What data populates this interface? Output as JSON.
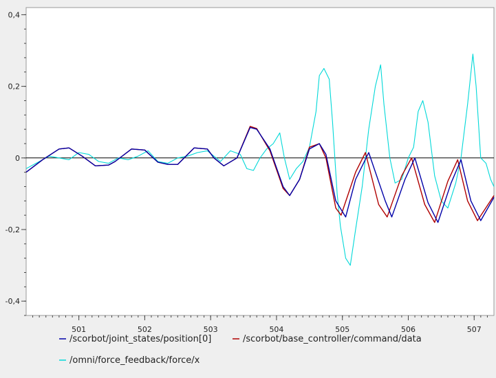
{
  "chart_data": {
    "type": "line",
    "title": "",
    "xlabel": "",
    "ylabel": "",
    "xlim": [
      500.2,
      507.3
    ],
    "ylim": [
      -0.44,
      0.42
    ],
    "x_ticks": [
      501,
      502,
      503,
      504,
      505,
      506,
      507
    ],
    "x_tick_labels": [
      "501",
      "502",
      "503",
      "504",
      "505",
      "506",
      "507"
    ],
    "y_ticks": [
      0.4,
      0.2,
      0,
      -0.2,
      -0.4
    ],
    "y_tick_labels": [
      "0,4",
      "0,2",
      "0",
      "-0,2",
      "-0,4"
    ],
    "zero_line": true,
    "grid": false,
    "legend_position": "bottom",
    "series": [
      {
        "name": "/scorbot/joint_states/position[0]",
        "color": "#0000a8",
        "x": [
          500.2,
          500.45,
          500.7,
          500.85,
          501.05,
          501.25,
          501.45,
          501.55,
          501.8,
          502.0,
          502.2,
          502.35,
          502.5,
          502.75,
          502.95,
          503.05,
          503.2,
          503.4,
          503.6,
          503.7,
          503.9,
          504.1,
          504.2,
          504.35,
          504.5,
          504.65,
          504.75,
          504.9,
          505.05,
          505.2,
          505.4,
          505.65,
          505.75,
          505.95,
          506.1,
          506.3,
          506.45,
          506.65,
          506.8,
          506.95,
          507.1,
          507.3
        ],
        "y": [
          -0.04,
          -0.005,
          0.025,
          0.028,
          0.005,
          -0.022,
          -0.02,
          -0.01,
          0.025,
          0.022,
          -0.012,
          -0.018,
          -0.018,
          0.028,
          0.025,
          0.0,
          -0.022,
          0.0,
          0.085,
          0.08,
          0.025,
          -0.08,
          -0.105,
          -0.06,
          0.025,
          0.04,
          0.01,
          -0.12,
          -0.165,
          -0.06,
          0.015,
          -0.12,
          -0.165,
          -0.06,
          0.0,
          -0.125,
          -0.18,
          -0.07,
          -0.005,
          -0.12,
          -0.175,
          -0.11
        ]
      },
      {
        "name": "/scorbot/base_controller/command/data",
        "color": "#b00000",
        "x": [
          500.2,
          500.45,
          500.7,
          500.85,
          501.05,
          501.25,
          501.45,
          501.55,
          501.8,
          502.0,
          502.2,
          502.35,
          502.5,
          502.75,
          502.95,
          503.05,
          503.2,
          503.4,
          503.6,
          503.7,
          503.9,
          504.1,
          504.2,
          504.35,
          504.5,
          504.65,
          504.75,
          504.9,
          504.98,
          505.2,
          505.35,
          505.55,
          505.68,
          505.9,
          506.05,
          506.25,
          506.4,
          506.6,
          506.75,
          506.9,
          507.05,
          507.3
        ],
        "y": [
          -0.04,
          -0.005,
          0.025,
          0.028,
          0.005,
          -0.022,
          -0.02,
          -0.01,
          0.025,
          0.022,
          -0.012,
          -0.018,
          -0.018,
          0.028,
          0.025,
          0.0,
          -0.022,
          0.0,
          0.088,
          0.082,
          0.02,
          -0.085,
          -0.105,
          -0.06,
          0.03,
          0.04,
          0.0,
          -0.14,
          -0.16,
          -0.04,
          0.015,
          -0.13,
          -0.165,
          -0.05,
          0.0,
          -0.13,
          -0.18,
          -0.065,
          -0.005,
          -0.12,
          -0.175,
          -0.105
        ]
      },
      {
        "name": "/omni/force_feedback/force/x",
        "color": "#00d8d8",
        "x": [
          500.2,
          500.4,
          500.55,
          500.7,
          500.85,
          501.0,
          501.15,
          501.3,
          501.45,
          501.6,
          501.75,
          501.9,
          502.05,
          502.2,
          502.35,
          502.5,
          502.65,
          502.8,
          502.95,
          503.05,
          503.15,
          503.3,
          503.45,
          503.55,
          503.65,
          503.75,
          503.85,
          503.95,
          504.05,
          504.12,
          504.2,
          504.3,
          504.4,
          504.5,
          504.6,
          504.65,
          504.72,
          504.8,
          504.85,
          504.92,
          504.97,
          505.05,
          505.12,
          505.2,
          505.3,
          505.4,
          505.5,
          505.58,
          505.63,
          505.72,
          505.8,
          505.9,
          506.0,
          506.08,
          506.15,
          506.22,
          506.3,
          506.4,
          506.5,
          506.6,
          506.72,
          506.8,
          506.9,
          506.98,
          507.03,
          507.1,
          507.18,
          507.25,
          507.3
        ],
        "y": [
          -0.03,
          -0.01,
          0.005,
          0.0,
          -0.005,
          0.015,
          0.01,
          -0.01,
          -0.015,
          0.0,
          -0.005,
          0.005,
          0.02,
          -0.01,
          -0.015,
          0.0,
          0.005,
          0.015,
          0.02,
          0.005,
          -0.01,
          0.02,
          0.01,
          -0.03,
          -0.035,
          0.0,
          0.025,
          0.04,
          0.07,
          0.0,
          -0.06,
          -0.03,
          -0.01,
          0.03,
          0.13,
          0.23,
          0.25,
          0.22,
          0.1,
          -0.1,
          -0.19,
          -0.28,
          -0.3,
          -0.2,
          -0.08,
          0.08,
          0.2,
          0.26,
          0.15,
          0.0,
          -0.07,
          -0.06,
          0.0,
          0.03,
          0.13,
          0.16,
          0.1,
          -0.05,
          -0.12,
          -0.14,
          -0.07,
          0.0,
          0.15,
          0.29,
          0.2,
          0.0,
          -0.015,
          -0.06,
          -0.08
        ]
      }
    ]
  }
}
